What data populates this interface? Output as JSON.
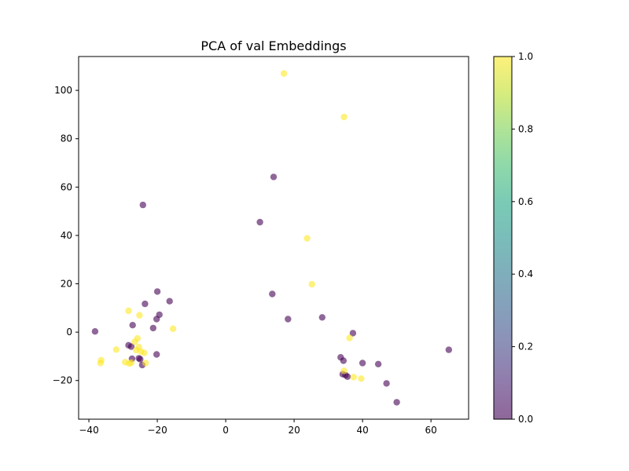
{
  "chart_data": {
    "type": "scatter",
    "title": "PCA of val Embeddings",
    "xlabel": "",
    "ylabel": "",
    "xlim": [
      -43,
      71
    ],
    "ylim": [
      -36,
      114
    ],
    "xticks": [
      -40,
      -20,
      0,
      20,
      40,
      60
    ],
    "yticks": [
      -20,
      0,
      20,
      40,
      60,
      80,
      100
    ],
    "grid": false,
    "legend": "none",
    "colormap": "viridis",
    "colorbar": {
      "range": [
        0.0,
        1.0
      ],
      "ticks": [
        "0.0",
        "0.2",
        "0.4",
        "0.6",
        "0.8",
        "1.0"
      ]
    },
    "colors": {
      "class_0": "#440154",
      "class_1": "#fde725"
    },
    "marker_alpha": 0.6,
    "points": [
      {
        "x": 17.0,
        "y": 107.0,
        "c": 1
      },
      {
        "x": 34.6,
        "y": 89.0,
        "c": 1
      },
      {
        "x": 14.0,
        "y": 64.2,
        "c": 0
      },
      {
        "x": -24.2,
        "y": 52.6,
        "c": 0
      },
      {
        "x": 10.0,
        "y": 45.5,
        "c": 0
      },
      {
        "x": 23.8,
        "y": 38.8,
        "c": 1
      },
      {
        "x": 25.2,
        "y": 19.8,
        "c": 1
      },
      {
        "x": -20.0,
        "y": 16.8,
        "c": 0
      },
      {
        "x": 13.6,
        "y": 15.8,
        "c": 0
      },
      {
        "x": -16.4,
        "y": 12.8,
        "c": 0
      },
      {
        "x": -23.6,
        "y": 11.7,
        "c": 0
      },
      {
        "x": -28.4,
        "y": 8.8,
        "c": 1
      },
      {
        "x": -25.2,
        "y": 7.0,
        "c": 1
      },
      {
        "x": -19.4,
        "y": 7.2,
        "c": 0
      },
      {
        "x": 28.2,
        "y": 6.1,
        "c": 0
      },
      {
        "x": 18.2,
        "y": 5.4,
        "c": 0
      },
      {
        "x": -20.2,
        "y": 5.4,
        "c": 0
      },
      {
        "x": -27.2,
        "y": 2.9,
        "c": 0
      },
      {
        "x": -21.2,
        "y": 1.7,
        "c": 0
      },
      {
        "x": -15.4,
        "y": 1.4,
        "c": 1
      },
      {
        "x": -38.2,
        "y": 0.3,
        "c": 0
      },
      {
        "x": 37.2,
        "y": -0.4,
        "c": 0
      },
      {
        "x": 36.2,
        "y": -2.4,
        "c": 1
      },
      {
        "x": -25.8,
        "y": -2.6,
        "c": 1
      },
      {
        "x": -26.6,
        "y": -4.0,
        "c": 1
      },
      {
        "x": -28.4,
        "y": -5.4,
        "c": 0
      },
      {
        "x": -27.6,
        "y": -6.0,
        "c": 0
      },
      {
        "x": -25.4,
        "y": -6.2,
        "c": 1
      },
      {
        "x": -32.0,
        "y": -7.2,
        "c": 1
      },
      {
        "x": -26.2,
        "y": -7.4,
        "c": 1
      },
      {
        "x": 65.2,
        "y": -7.3,
        "c": 0
      },
      {
        "x": -24.8,
        "y": -8.0,
        "c": 1
      },
      {
        "x": -23.8,
        "y": -8.6,
        "c": 1
      },
      {
        "x": -20.2,
        "y": -9.2,
        "c": 0
      },
      {
        "x": 33.6,
        "y": -10.4,
        "c": 0
      },
      {
        "x": -27.4,
        "y": -11.0,
        "c": 0
      },
      {
        "x": -25.4,
        "y": -10.8,
        "c": 0
      },
      {
        "x": -25.0,
        "y": -11.2,
        "c": 0
      },
      {
        "x": -36.4,
        "y": -11.6,
        "c": 1
      },
      {
        "x": 34.4,
        "y": -11.8,
        "c": 0
      },
      {
        "x": -29.4,
        "y": -12.4,
        "c": 1
      },
      {
        "x": -36.6,
        "y": -12.8,
        "c": 1
      },
      {
        "x": -27.6,
        "y": -12.6,
        "c": 1
      },
      {
        "x": -28.2,
        "y": -13.0,
        "c": 1
      },
      {
        "x": -23.4,
        "y": -12.8,
        "c": 1
      },
      {
        "x": -24.4,
        "y": -13.6,
        "c": 0
      },
      {
        "x": 40.0,
        "y": -12.8,
        "c": 0
      },
      {
        "x": 44.6,
        "y": -13.2,
        "c": 0
      },
      {
        "x": 34.6,
        "y": -16.0,
        "c": 1
      },
      {
        "x": 34.2,
        "y": -17.4,
        "c": 0
      },
      {
        "x": 35.0,
        "y": -17.8,
        "c": 0
      },
      {
        "x": 35.6,
        "y": -18.4,
        "c": 0
      },
      {
        "x": 37.4,
        "y": -18.6,
        "c": 1
      },
      {
        "x": 39.6,
        "y": -19.2,
        "c": 1
      },
      {
        "x": 47.0,
        "y": -21.2,
        "c": 0
      },
      {
        "x": 50.0,
        "y": -29.0,
        "c": 0
      }
    ]
  }
}
